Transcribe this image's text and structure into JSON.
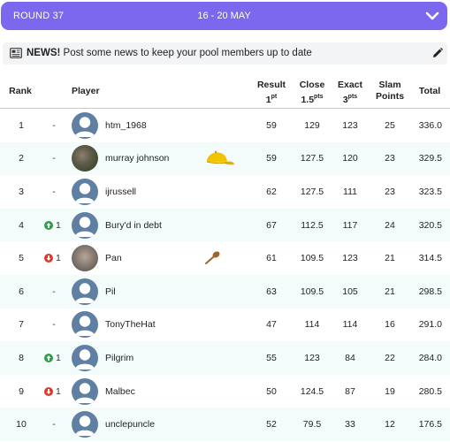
{
  "round": {
    "label": "ROUND 37",
    "dates": "16 - 20 MAY",
    "chevron_icon": "chevron-down-icon"
  },
  "news": {
    "icon": "newspaper-icon",
    "title": "NEWS!",
    "text": "Post some news to keep your pool members up to date",
    "edit_icon": "pencil-icon"
  },
  "table": {
    "headers": {
      "rank": "Rank",
      "player": "Player",
      "result": "Result",
      "result_pts": "1",
      "result_pts_unit": "pt",
      "close": "Close",
      "close_pts": "1.5",
      "close_pts_unit": "pts",
      "exact": "Exact",
      "exact_pts": "3",
      "exact_pts_unit": "pts",
      "slam_1": "Slam",
      "slam_2": "Points",
      "total": "Total"
    },
    "rows": [
      {
        "rank": "1",
        "move": "-",
        "direction": "none",
        "name": "htm_1968",
        "avatar": "default",
        "badge": "",
        "result": "59",
        "close": "129",
        "exact": "123",
        "slam": "25",
        "total": "336.0"
      },
      {
        "rank": "2",
        "move": "-",
        "direction": "none",
        "name": "murray johnson",
        "avatar": "photo1",
        "badge": "cap-icon",
        "result": "59",
        "close": "127.5",
        "exact": "120",
        "slam": "23",
        "total": "329.5"
      },
      {
        "rank": "3",
        "move": "-",
        "direction": "none",
        "name": "ijrussell",
        "avatar": "default",
        "badge": "",
        "result": "62",
        "close": "127.5",
        "exact": "111",
        "slam": "23",
        "total": "323.5"
      },
      {
        "rank": "4",
        "move": "1",
        "direction": "up",
        "name": "Bury'd in debt",
        "avatar": "default",
        "badge": "",
        "result": "67",
        "close": "112.5",
        "exact": "117",
        "slam": "24",
        "total": "320.5"
      },
      {
        "rank": "5",
        "move": "1",
        "direction": "down",
        "name": "Pan",
        "avatar": "photo2",
        "badge": "wooden-spoon-icon",
        "result": "61",
        "close": "109.5",
        "exact": "123",
        "slam": "21",
        "total": "314.5"
      },
      {
        "rank": "6",
        "move": "-",
        "direction": "none",
        "name": "Pil",
        "avatar": "default",
        "badge": "",
        "result": "63",
        "close": "109.5",
        "exact": "105",
        "slam": "21",
        "total": "298.5"
      },
      {
        "rank": "7",
        "move": "-",
        "direction": "none",
        "name": "TonyTheHat",
        "avatar": "default",
        "badge": "",
        "result": "47",
        "close": "114",
        "exact": "114",
        "slam": "16",
        "total": "291.0"
      },
      {
        "rank": "8",
        "move": "1",
        "direction": "up",
        "name": "Pilgrim",
        "avatar": "default",
        "badge": "",
        "result": "55",
        "close": "123",
        "exact": "84",
        "slam": "22",
        "total": "284.0"
      },
      {
        "rank": "9",
        "move": "1",
        "direction": "down",
        "name": "Malbec",
        "avatar": "default",
        "badge": "",
        "result": "50",
        "close": "124.5",
        "exact": "87",
        "slam": "19",
        "total": "280.5"
      },
      {
        "rank": "10",
        "move": "-",
        "direction": "none",
        "name": "unclepuncle",
        "avatar": "default",
        "badge": "",
        "result": "52",
        "close": "79.5",
        "exact": "33",
        "slam": "12",
        "total": "176.5"
      }
    ]
  },
  "colors": {
    "accent": "#7b68ee",
    "up": "#2e9e47",
    "down": "#d93a2b",
    "avatar_default": "#5f7fa3",
    "alt_row": "#f4fbfb"
  }
}
